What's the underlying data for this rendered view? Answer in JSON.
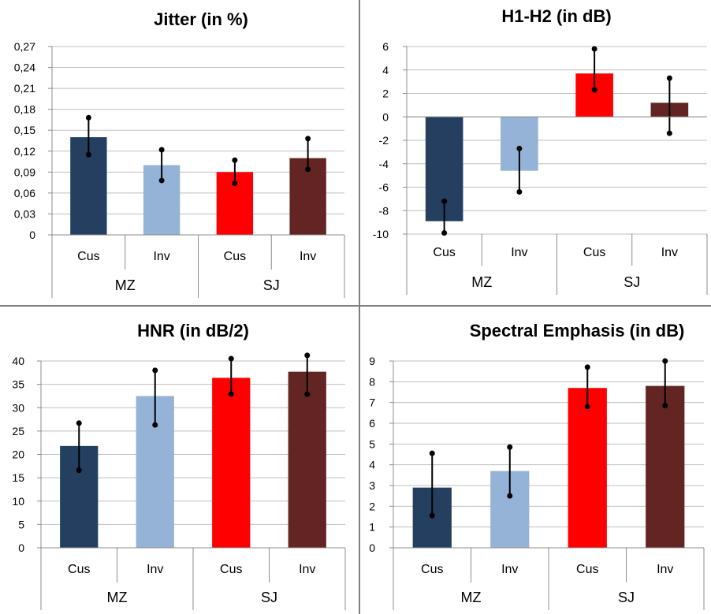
{
  "colors": {
    "mz_cus": "#243F60",
    "mz_inv": "#95B3D7",
    "sj_cus": "#FF0000",
    "sj_inv": "#632523",
    "error": "#000000",
    "grid": "#bfbfbf",
    "axis": "#8c8c8c",
    "text": "#000000"
  },
  "chart_data": [
    {
      "type": "bar",
      "title": "Jitter (in %)",
      "groups": [
        "MZ",
        "SJ"
      ],
      "categories": [
        "Cus",
        "Inv",
        "Cus",
        "Inv"
      ],
      "values": [
        0.14,
        0.1,
        0.09,
        0.11
      ],
      "error_low": [
        0.115,
        0.078,
        0.074,
        0.094
      ],
      "error_high": [
        0.168,
        0.122,
        0.107,
        0.138
      ],
      "ylim": [
        0,
        0.27
      ],
      "yticks": [
        "0",
        "0,03",
        "0,06",
        "0,09",
        "0,12",
        "0,15",
        "0,18",
        "0,21",
        "0,24",
        "0,27"
      ],
      "grid": true
    },
    {
      "type": "bar",
      "title": "H1-H2 (in dB)",
      "groups": [
        "MZ",
        "SJ"
      ],
      "categories": [
        "Cus",
        "Inv",
        "Cus",
        "Inv"
      ],
      "values": [
        -8.9,
        -4.6,
        3.7,
        1.2
      ],
      "error_low": [
        -9.9,
        -6.4,
        2.3,
        -1.4
      ],
      "error_high": [
        -7.2,
        -2.7,
        5.8,
        3.3
      ],
      "ylim": [
        -10,
        6
      ],
      "yticks": [
        "-10",
        "-8",
        "-6",
        "-4",
        "-2",
        "0",
        "2",
        "4",
        "6"
      ],
      "grid": true
    },
    {
      "type": "bar",
      "title": "HNR (in dB/2)",
      "groups": [
        "MZ",
        "SJ"
      ],
      "categories": [
        "Cus",
        "Inv",
        "Cus",
        "Inv"
      ],
      "values": [
        21.8,
        32.5,
        36.4,
        37.7
      ],
      "error_low": [
        16.6,
        26.3,
        32.9,
        32.9
      ],
      "error_high": [
        26.7,
        38.0,
        40.5,
        41.2
      ],
      "ylim": [
        0,
        40
      ],
      "yticks": [
        "0",
        "5",
        "10",
        "15",
        "20",
        "25",
        "30",
        "35",
        "40"
      ],
      "grid": true
    },
    {
      "type": "bar",
      "title": "Spectral Emphasis (in dB)",
      "groups": [
        "MZ",
        "SJ"
      ],
      "categories": [
        "Cus",
        "Inv",
        "Cus",
        "Inv"
      ],
      "values": [
        2.9,
        3.7,
        7.7,
        7.8
      ],
      "error_low": [
        1.55,
        2.5,
        6.8,
        6.85
      ],
      "error_high": [
        4.55,
        4.85,
        8.7,
        9.0
      ],
      "ylim": [
        0,
        9
      ],
      "yticks": [
        "0",
        "1",
        "2",
        "3",
        "4",
        "5",
        "6",
        "7",
        "8",
        "9"
      ],
      "grid": true
    }
  ]
}
